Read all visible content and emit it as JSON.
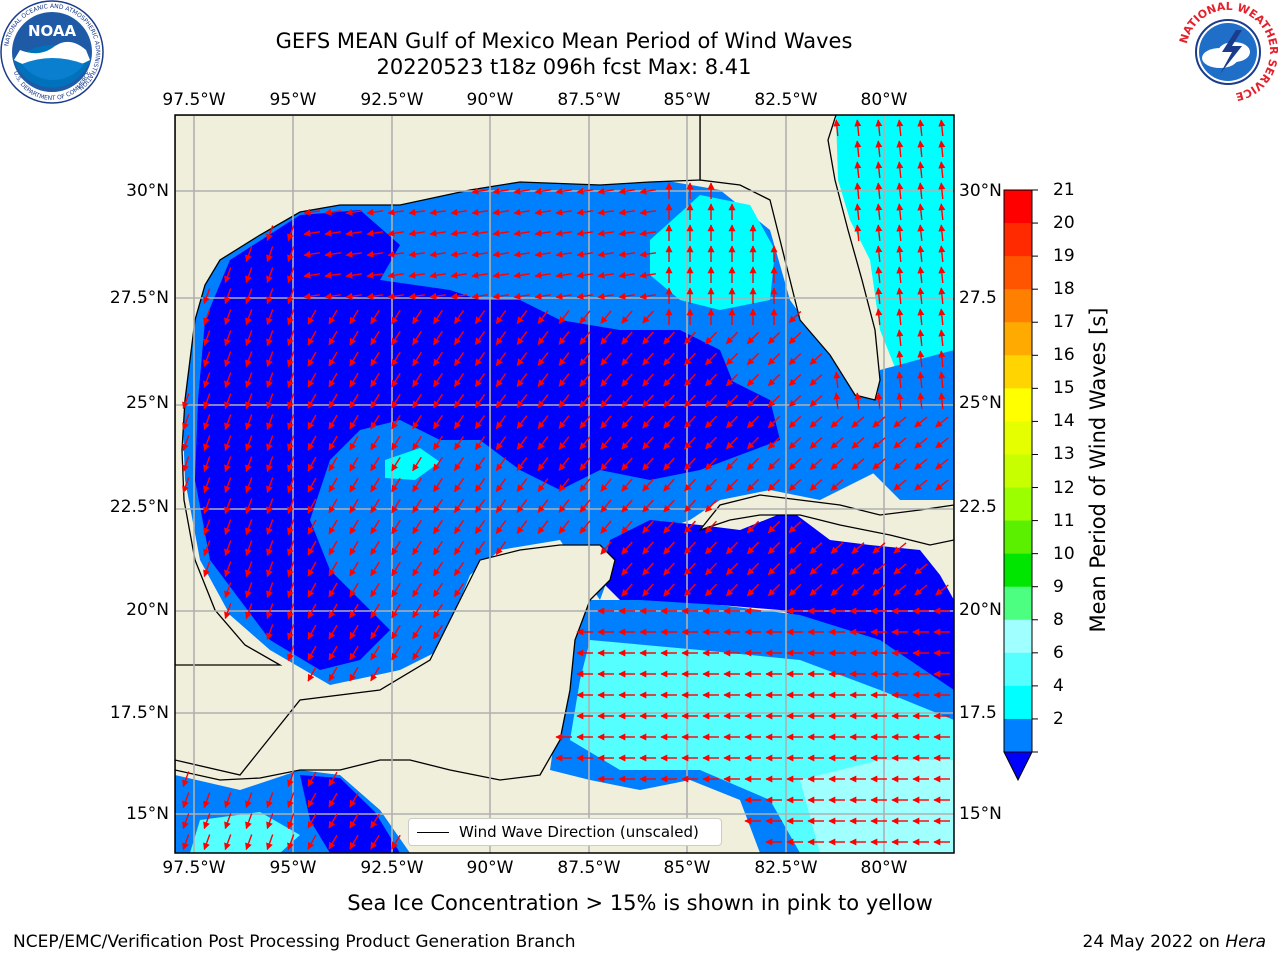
{
  "title": {
    "line1": "GEFS MEAN Gulf of Mexico Mean Period of Wind Waves",
    "line2": "20220523 t18z 096h fcst   Max: 8.41"
  },
  "logos": {
    "noaa": {
      "name": "NOAA",
      "ring_text": "NATIONAL OCEANIC AND ATMOSPHERIC ADMINISTRATION",
      "bottom_text": "U.S. DEPARTMENT OF COMMERCE"
    },
    "nws": {
      "ring_text": "NATIONAL WEATHER SERVICE"
    }
  },
  "map": {
    "lon_ticks": [
      "97.5°W",
      "95°W",
      "92.5°W",
      "90°W",
      "87.5°W",
      "85°W",
      "82.5°W",
      "80°W"
    ],
    "lat_ticks_left": [
      "30°N",
      "27.5°N",
      "25°N",
      "22.5°N",
      "20°N",
      "17.5°N",
      "15°N"
    ],
    "lat_ticks_right": [
      "30°N",
      "27.5",
      "25°N",
      "22.5",
      "20°N",
      "17.5",
      "15°N"
    ],
    "legend_label": "Wind Wave Direction (unscaled)",
    "land_color": "#efefdc",
    "arrow_color": "#ff0000"
  },
  "colorbar": {
    "title": "Mean Period of Wind Waves [s]",
    "labels": [
      "21",
      "20",
      "19",
      "18",
      "17",
      "16",
      "15",
      "14",
      "13",
      "12",
      "11",
      "10",
      "9",
      "8",
      "6",
      "4",
      "2"
    ],
    "colors": [
      "#ff0000",
      "#ff2a00",
      "#ff5500",
      "#ff7f00",
      "#ffaa00",
      "#ffd400",
      "#ffff00",
      "#e6ff00",
      "#c8ff00",
      "#9bff00",
      "#5af000",
      "#00e600",
      "#4cff80",
      "#a0ffff",
      "#55ffff",
      "#00ffff",
      "#0080ff"
    ],
    "under_color": "#0000ff"
  },
  "footnote": "Sea Ice Concentration > 15% is shown in pink to yellow",
  "credit": {
    "left": "NCEP/EMC/Verification Post Processing Product Generation Branch",
    "right_date": "24 May 2022 on",
    "right_host": "Hera"
  }
}
